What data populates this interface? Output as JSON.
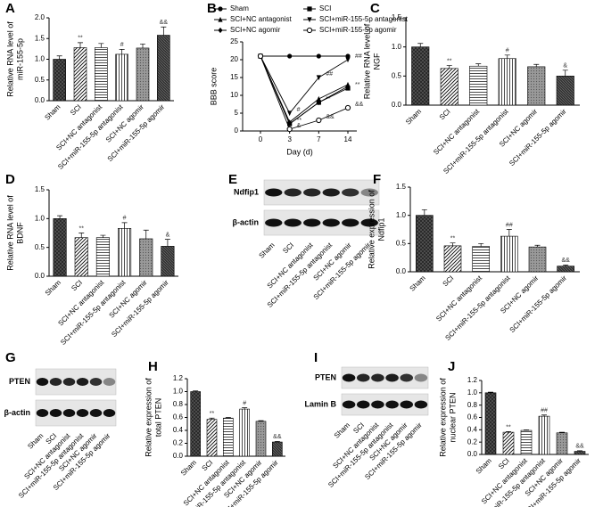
{
  "chart_data": [
    {
      "type": "bar",
      "panel": "A",
      "ylabel": [
        "Relative RNA level of",
        "miR-155-5p"
      ],
      "categories": [
        "Sham",
        "SCI",
        "SCI+NC antagonist",
        "SCI+miR-155-5p antagonist",
        "SCI+NC agomir",
        "SCI+miR-155-5p agomir"
      ],
      "values": [
        1.0,
        1.28,
        1.28,
        1.12,
        1.27,
        1.58
      ],
      "errors": [
        0.08,
        0.12,
        0.1,
        0.12,
        0.1,
        0.2
      ],
      "annotations": [
        null,
        "**",
        null,
        "#",
        null,
        "&&"
      ],
      "ylim": [
        0,
        2
      ],
      "yticks": [
        {
          "value": 0,
          "label": "0.0"
        },
        0.5,
        {
          "value": 1,
          "label": "1.0"
        },
        1.5,
        {
          "value": 2,
          "label": "2.0"
        }
      ]
    },
    {
      "type": "line",
      "panel": "B",
      "ylabel": [
        "BBB score"
      ],
      "xlabel": "Day (d)",
      "categories": [
        "0",
        "3",
        "7",
        "14"
      ],
      "series": [
        {
          "name": "Sham",
          "color": "#000000",
          "marker": "circle",
          "values": [
            21,
            21,
            21,
            21
          ],
          "annotations": [
            null,
            null,
            null,
            null
          ]
        },
        {
          "name": "SCI",
          "color": "#000000",
          "marker": "square",
          "values": [
            21,
            2,
            8,
            12
          ],
          "annotations": [
            null,
            "**",
            "**",
            "**"
          ]
        },
        {
          "name": "SCI+NC antagonist",
          "color": "#000000",
          "marker": "triangle",
          "values": [
            21,
            2.5,
            9,
            13
          ],
          "annotations": [
            null,
            null,
            null,
            null
          ]
        },
        {
          "name": "SCI+miR-155-5p antagonist",
          "color": "#000000",
          "marker": "triangle-down",
          "values": [
            21,
            5,
            15,
            20
          ],
          "annotations": [
            null,
            "#",
            "##",
            "##"
          ]
        },
        {
          "name": "SCI+NC agomir",
          "color": "#000000",
          "marker": "diamond",
          "values": [
            21,
            2,
            8,
            12.5
          ],
          "annotations": [
            null,
            null,
            null,
            null
          ]
        },
        {
          "name": "SCI+miR-155-5p agomir",
          "color": "#000000",
          "marker": "open-circle",
          "values": [
            21,
            0.5,
            3,
            6.5
          ],
          "annotations": [
            null,
            "&",
            "&&",
            "&&"
          ]
        }
      ],
      "ylim": [
        0,
        25
      ],
      "yticks": [
        0,
        5,
        10,
        15,
        20,
        25
      ]
    },
    {
      "type": "bar",
      "panel": "C",
      "ylabel": [
        "Relative RNA level of",
        "NGF"
      ],
      "categories": [
        "Sham",
        "SCI",
        "SCI+NC antagonist",
        "SCI+miR-155-5p antagonist",
        "SCI+NC agomir",
        "SCI+miR-155-5p agomir"
      ],
      "values": [
        1.0,
        0.63,
        0.67,
        0.8,
        0.66,
        0.5
      ],
      "errors": [
        0.06,
        0.05,
        0.04,
        0.06,
        0.04,
        0.1
      ],
      "annotations": [
        null,
        "**",
        null,
        "#",
        null,
        "&"
      ],
      "ylim": [
        0,
        1.5
      ],
      "yticks": [
        {
          "value": 0,
          "label": "0.0"
        },
        0.5,
        {
          "value": 1,
          "label": "1.0"
        },
        1.5
      ]
    },
    {
      "type": "bar",
      "panel": "D",
      "ylabel": [
        "Relative RNA level of",
        "BDNF"
      ],
      "categories": [
        "Sham",
        "SCI",
        "SCI+NC antagonist",
        "SCI+miR-155-5p antagonist",
        "SCI+NC agomir",
        "SCI+miR-155-5p agomir"
      ],
      "values": [
        1.0,
        0.67,
        0.67,
        0.83,
        0.65,
        0.52
      ],
      "errors": [
        0.05,
        0.08,
        0.04,
        0.1,
        0.15,
        0.12
      ],
      "annotations": [
        null,
        "**",
        null,
        "#",
        null,
        "&"
      ],
      "ylim": [
        0,
        1.5
      ],
      "yticks": [
        {
          "value": 0,
          "label": "0.0"
        },
        0.5,
        {
          "value": 1,
          "label": "1.0"
        },
        1.5
      ]
    },
    {
      "type": "blot",
      "panel": "E",
      "rows": [
        "Ndfip1",
        "β-actin"
      ],
      "categories": [
        "Sham",
        "SCI",
        "SCI+NC antagonist",
        "SCI+miR-155-5p antagonist",
        "SCI+NC agomir",
        "SCI+miR-155-5p agomir"
      ]
    },
    {
      "type": "bar",
      "panel": "F",
      "ylabel": [
        "Relative expression of",
        "Ndfip1"
      ],
      "categories": [
        "Sham",
        "SCI",
        "SCI+NC antagonist",
        "SCI+miR-155-5p antagonist",
        "SCI+NC agomir",
        "SCI+miR-155-5p agomir"
      ],
      "values": [
        1.0,
        0.46,
        0.45,
        0.63,
        0.44,
        0.1
      ],
      "errors": [
        0.1,
        0.05,
        0.05,
        0.12,
        0.03,
        0.02
      ],
      "annotations": [
        null,
        "**",
        null,
        "##",
        null,
        "&&"
      ],
      "ylim": [
        0,
        1.5
      ],
      "yticks": [
        {
          "value": 0,
          "label": "0.0"
        },
        0.5,
        {
          "value": 1,
          "label": "1.0"
        },
        1.5
      ]
    },
    {
      "type": "blot",
      "panel": "G",
      "rows": [
        "PTEN",
        "β-actin"
      ],
      "categories": [
        "Sham",
        "SCI",
        "SCI+NC antagonist",
        "SCI+miR-155-5p antagonist",
        "SCI+NC agomir",
        "SCI+miR-155-5p agomir"
      ]
    },
    {
      "type": "bar",
      "panel": "H",
      "ylabel": [
        "Relative expression of",
        "total PTEN"
      ],
      "categories": [
        "Sham",
        "SCI",
        "SCI+NC antagonist",
        "SCI+miR-155-5p antagonist",
        "SCI+NC agomir",
        "SCI+miR-155-5p agomir"
      ],
      "values": [
        1.0,
        0.57,
        0.59,
        0.73,
        0.54,
        0.22
      ],
      "errors": [
        0.01,
        0.02,
        0.01,
        0.02,
        0.01,
        0.01
      ],
      "annotations": [
        null,
        "**",
        null,
        "#",
        null,
        "&&"
      ],
      "ylim": [
        0,
        1.2
      ],
      "yticks": [
        {
          "value": 0,
          "label": "0.0"
        },
        0.2,
        0.4,
        0.6,
        0.8,
        {
          "value": 1,
          "label": "1.0"
        },
        1.2
      ]
    },
    {
      "type": "blot",
      "panel": "I",
      "rows": [
        "PTEN",
        "Lamin B"
      ],
      "categories": [
        "Sham",
        "SCI",
        "SCI+NC antagonist",
        "SCI+miR-155-5p antagonist",
        "SCI+NC agomir",
        "SCI+miR-155-5p agomir"
      ]
    },
    {
      "type": "bar",
      "panel": "J",
      "ylabel": [
        "Relative expression of",
        "nuclear PTEN"
      ],
      "categories": [
        "Sham",
        "SCI",
        "SCI+NC antagonist",
        "SCI+miR-155-5p antagonist",
        "SCI+NC agomir",
        "SCI+miR-155-5p agomir"
      ],
      "values": [
        1.0,
        0.36,
        0.39,
        0.62,
        0.35,
        0.05
      ],
      "errors": [
        0.01,
        0.01,
        0.01,
        0.02,
        0.01,
        0.01
      ],
      "annotations": [
        null,
        "**",
        null,
        "##",
        null,
        "&&"
      ],
      "ylim": [
        0,
        1.2
      ],
      "yticks": [
        {
          "value": 0,
          "label": "0.0"
        },
        0.2,
        0.4,
        0.6,
        0.8,
        {
          "value": 1,
          "label": "1.0"
        },
        1.2
      ]
    }
  ]
}
